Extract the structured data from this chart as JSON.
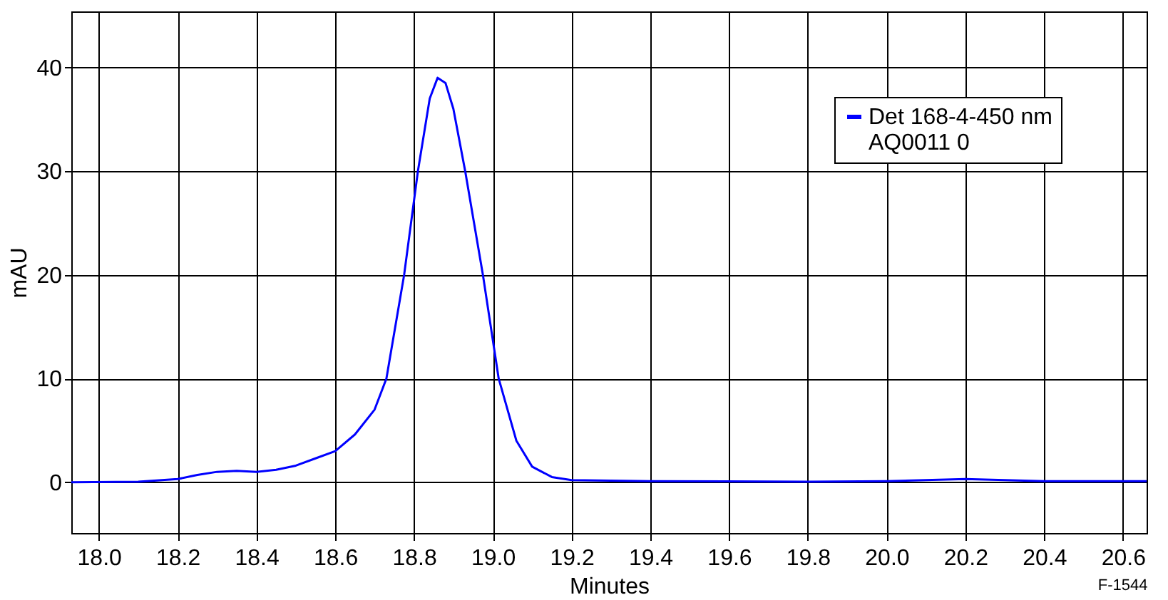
{
  "chart_data": {
    "type": "line",
    "xlabel": "Minutes",
    "ylabel": "mAU",
    "x": [
      17.93,
      18.1,
      18.2,
      18.25,
      18.3,
      18.35,
      18.4,
      18.45,
      18.5,
      18.55,
      18.6,
      18.65,
      18.7,
      18.73,
      18.775,
      18.81,
      18.84,
      18.86,
      18.88,
      18.9,
      18.93,
      18.975,
      19.015,
      19.06,
      19.1,
      19.15,
      19.2,
      19.4,
      19.8,
      20.0,
      20.2,
      20.4,
      20.66
    ],
    "series": [
      {
        "name": "Det 168-4-450 nm\nAQ0011 0",
        "color": "#0000ff",
        "values": [
          0,
          0.05,
          0.3,
          0.7,
          1.0,
          1.1,
          1.0,
          1.2,
          1.6,
          2.3,
          3,
          4.6,
          7,
          10,
          20,
          30,
          37,
          39,
          38.5,
          36,
          30,
          20,
          10,
          4,
          1.5,
          0.5,
          0.2,
          0.1,
          0.05,
          0.1,
          0.3,
          0.1,
          0.1
        ]
      }
    ],
    "xlim": [
      17.93,
      20.66
    ],
    "ylim": [
      -4.9,
      45.4
    ],
    "xticks": [
      {
        "value": 18,
        "label": "18.0"
      },
      {
        "value": 18.2,
        "label": "18.2"
      },
      {
        "value": 18.4,
        "label": "18.4"
      },
      {
        "value": 18.6,
        "label": "18.6"
      },
      {
        "value": 18.8,
        "label": "18.8"
      },
      {
        "value": 19,
        "label": "19.0"
      },
      {
        "value": 19.2,
        "label": "19.2"
      },
      {
        "value": 19.4,
        "label": "19.4"
      },
      {
        "value": 19.6,
        "label": "19.6"
      },
      {
        "value": 19.8,
        "label": "19.8"
      },
      {
        "value": 20,
        "label": "20.0"
      },
      {
        "value": 20.2,
        "label": "20.2"
      },
      {
        "value": 20.4,
        "label": "20.4"
      },
      {
        "value": 20.6,
        "label": "20.6"
      }
    ],
    "yticks": [
      0,
      10,
      20,
      30,
      40
    ],
    "grid": true,
    "legend": "top right",
    "marker": "none",
    "line_style": "solid",
    "annotations": [
      "F-1544"
    ]
  }
}
